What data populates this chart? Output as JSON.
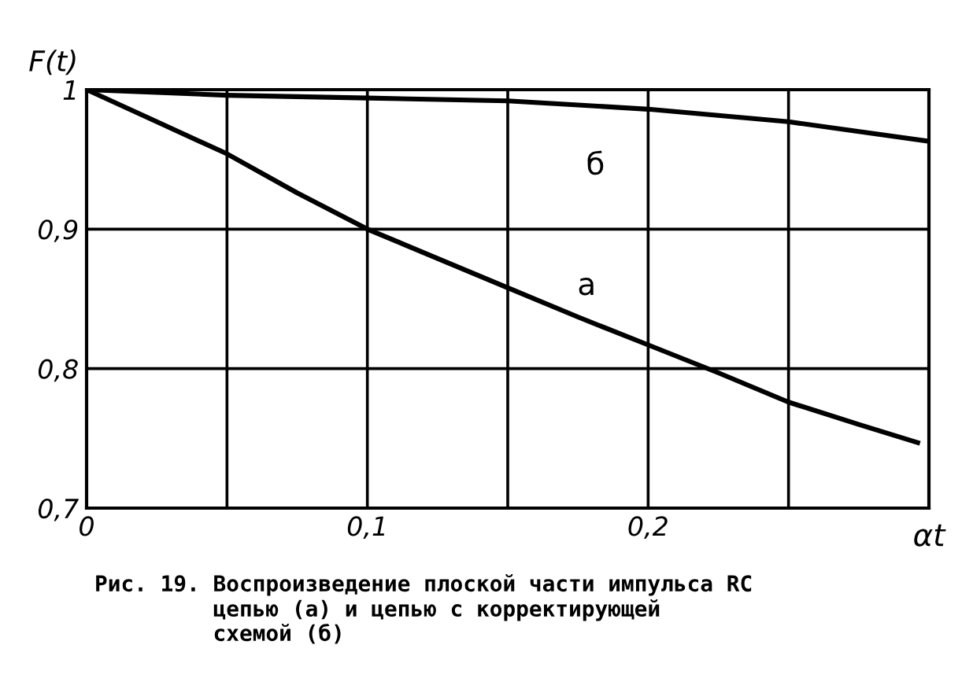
{
  "chart_data": {
    "type": "line",
    "ylabel": "F(t)",
    "xlabel": "αt",
    "x": [
      0,
      0.025,
      0.05,
      0.075,
      0.1,
      0.125,
      0.15,
      0.175,
      0.2,
      0.225,
      0.25,
      0.275,
      0.296
    ],
    "series": [
      {
        "name": "а",
        "color": "#000000",
        "values": [
          1,
          0.977,
          0.954,
          0.926,
          0.9,
          0.879,
          0.858,
          0.837,
          0.817,
          0.797,
          0.776,
          0.76,
          0.747
        ]
      },
      {
        "name": "б",
        "color": "#000000",
        "x": [
          0,
          0.05,
          0.1,
          0.15,
          0.2,
          0.25,
          0.3
        ],
        "values": [
          1,
          0.996,
          0.994,
          0.992,
          0.986,
          0.977,
          0.963
        ]
      }
    ],
    "xlim": [
      0,
      0.3
    ],
    "ylim": [
      0.7,
      1
    ],
    "xticks": [
      {
        "value": 0,
        "label": "0"
      },
      {
        "value": 0.05,
        "label": null
      },
      {
        "value": 0.1,
        "label": "0,1"
      },
      {
        "value": 0.15,
        "label": null
      },
      {
        "value": 0.2,
        "label": "0,2"
      },
      {
        "value": 0.25,
        "label": null
      },
      {
        "value": 0.3,
        "label": null
      }
    ],
    "yticks": [
      {
        "value": 0.7,
        "label": "0,7"
      },
      {
        "value": 0.8,
        "label": "0,8"
      },
      {
        "value": 0.9,
        "label": "0,9"
      },
      {
        "value": 1,
        "label": "1"
      }
    ],
    "grid": true,
    "legend": false,
    "marker": "none",
    "line_style": "solid",
    "annotations": [
      "Рис. 19. Воспроизведение плоской части импульса RC\n         цепью (а) и цепью с корректирующей\n         схемой (б)"
    ]
  }
}
